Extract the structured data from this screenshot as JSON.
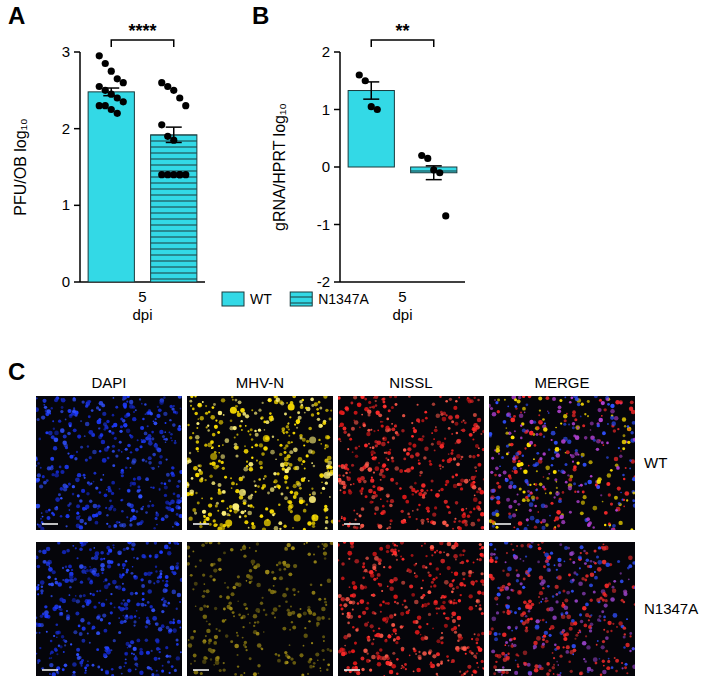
{
  "chart_data": [
    {
      "type": "bar",
      "panel_label": "A",
      "y_label": "PFU/OB log₁₀",
      "x_label": "dpi",
      "categories": [
        "5"
      ],
      "ylim": [
        0,
        3
      ],
      "yticks": [
        0,
        1,
        2,
        3
      ],
      "legend": "bottom",
      "annotation": "****",
      "series": [
        {
          "name": "WT",
          "color": "#33d9e6",
          "values": [
            2.48
          ],
          "error": [
            0.05
          ],
          "points": [
            2.95,
            2.85,
            2.75,
            2.65,
            2.6,
            2.55,
            2.5,
            2.45,
            2.4,
            2.35,
            2.3,
            2.3,
            2.25,
            2.2
          ]
        },
        {
          "name": "N1347A",
          "color": "#33d9e6",
          "values": [
            1.92
          ],
          "error": [
            0.1
          ],
          "points": [
            2.6,
            2.55,
            2.5,
            2.4,
            2.3,
            2.05,
            1.9,
            1.85,
            1.4,
            1.4,
            1.4,
            1.4,
            1.4,
            1.4
          ]
        }
      ]
    },
    {
      "type": "bar",
      "panel_label": "B",
      "y_label": "gRNA/HPRT log₁₀",
      "x_label": "dpi",
      "categories": [
        "5"
      ],
      "ylim": [
        -2,
        2
      ],
      "yticks": [
        -2,
        -1,
        0,
        1,
        2
      ],
      "annotation": "**",
      "series": [
        {
          "name": "WT",
          "color": "#33d9e6",
          "values": [
            1.33
          ],
          "error": [
            0.15
          ],
          "points": [
            1.6,
            1.5,
            1.05,
            1.0
          ]
        },
        {
          "name": "N1347A",
          "color": "#33d9e6",
          "values": [
            -0.1
          ],
          "error": [
            0.12
          ],
          "points": [
            0.2,
            0.15,
            -0.05,
            -0.1,
            -0.85
          ]
        }
      ]
    }
  ],
  "panel_c": {
    "label": "C",
    "columns": [
      "DAPI",
      "MHV-N",
      "NISSL",
      "MERGE"
    ],
    "rows": [
      "WT",
      "N1347A"
    ]
  }
}
